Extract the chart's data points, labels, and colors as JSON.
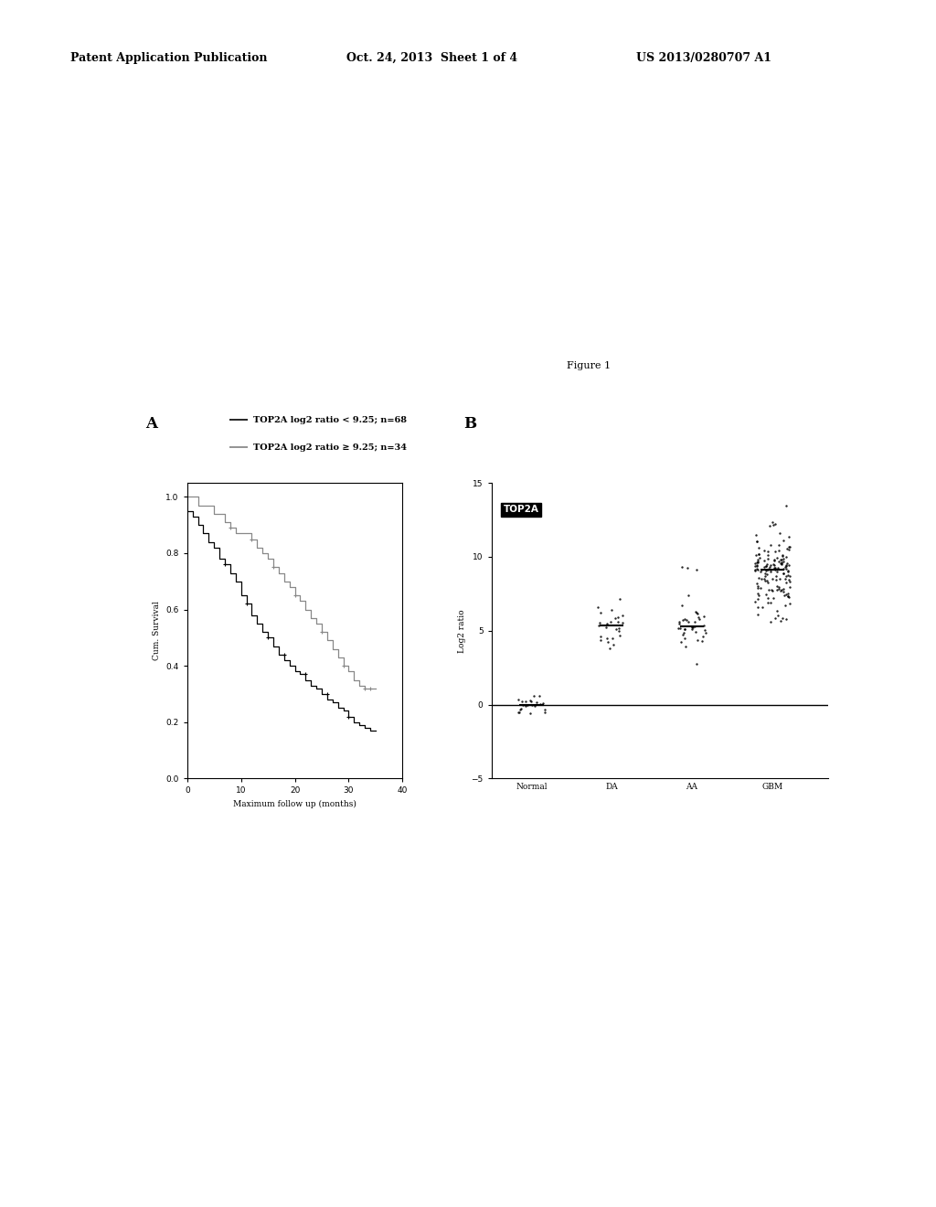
{
  "header_left": "Patent Application Publication",
  "header_mid": "Oct. 24, 2013  Sheet 1 of 4",
  "header_right": "US 2013/0280707 A1",
  "figure_label": "Figure 1",
  "panel_A_label": "A",
  "panel_B_label": "B",
  "km_legend1": "TOP2A log2 ratio < 9.25; n=68",
  "km_legend2": "TOP2A log2 ratio ≥ 9.25; n=34",
  "km_xlabel": "Maximum follow up (months)",
  "km_ylabel": "Cum. Survival",
  "km_xticks": [
    0,
    10,
    20,
    30,
    40
  ],
  "km_yticks": [
    0.0,
    0.2,
    0.4,
    0.6,
    0.8,
    1.0
  ],
  "km_xlim": [
    0,
    40
  ],
  "km_ylim": [
    0.0,
    1.05
  ],
  "scatter_ylabel": "Log2 ratio",
  "scatter_yticks": [
    -5,
    0,
    5,
    10,
    15
  ],
  "scatter_ylim": [
    -5,
    15
  ],
  "scatter_categories": [
    "Normal",
    "DA",
    "AA",
    "GBM"
  ],
  "scatter_label": "TOP2A",
  "background_color": "#ffffff",
  "km_t1": [
    0,
    1,
    2,
    3,
    4,
    5,
    6,
    7,
    8,
    9,
    10,
    11,
    12,
    13,
    14,
    15,
    16,
    17,
    18,
    19,
    20,
    21,
    22,
    23,
    24,
    25,
    26,
    27,
    28,
    29,
    30,
    31,
    32,
    33,
    34,
    35
  ],
  "km_s1": [
    0.95,
    0.93,
    0.9,
    0.87,
    0.84,
    0.82,
    0.78,
    0.76,
    0.73,
    0.7,
    0.65,
    0.62,
    0.58,
    0.55,
    0.52,
    0.5,
    0.47,
    0.44,
    0.42,
    0.4,
    0.38,
    0.37,
    0.35,
    0.33,
    0.32,
    0.3,
    0.28,
    0.27,
    0.25,
    0.24,
    0.22,
    0.2,
    0.19,
    0.18,
    0.17,
    0.17
  ],
  "km_t2": [
    0,
    1,
    2,
    3,
    4,
    5,
    6,
    7,
    8,
    9,
    10,
    11,
    12,
    13,
    14,
    15,
    16,
    17,
    18,
    19,
    20,
    21,
    22,
    23,
    24,
    25,
    26,
    27,
    28,
    29,
    30,
    31,
    32,
    33,
    34,
    35
  ],
  "km_s2": [
    1.0,
    1.0,
    0.97,
    0.97,
    0.97,
    0.94,
    0.94,
    0.91,
    0.89,
    0.87,
    0.87,
    0.87,
    0.85,
    0.82,
    0.8,
    0.78,
    0.75,
    0.73,
    0.7,
    0.68,
    0.65,
    0.63,
    0.6,
    0.57,
    0.55,
    0.52,
    0.49,
    0.46,
    0.43,
    0.4,
    0.38,
    0.35,
    0.33,
    0.32,
    0.32,
    0.32
  ],
  "km_censor1_t": [
    7,
    11,
    15,
    18,
    22,
    26,
    30
  ],
  "km_censor1_s": [
    0.76,
    0.62,
    0.5,
    0.44,
    0.37,
    0.3,
    0.22
  ],
  "km_censor2_t": [
    8,
    12,
    16,
    20,
    25,
    29,
    33,
    34
  ],
  "km_censor2_s": [
    0.89,
    0.85,
    0.75,
    0.65,
    0.52,
    0.4,
    0.32,
    0.32
  ]
}
